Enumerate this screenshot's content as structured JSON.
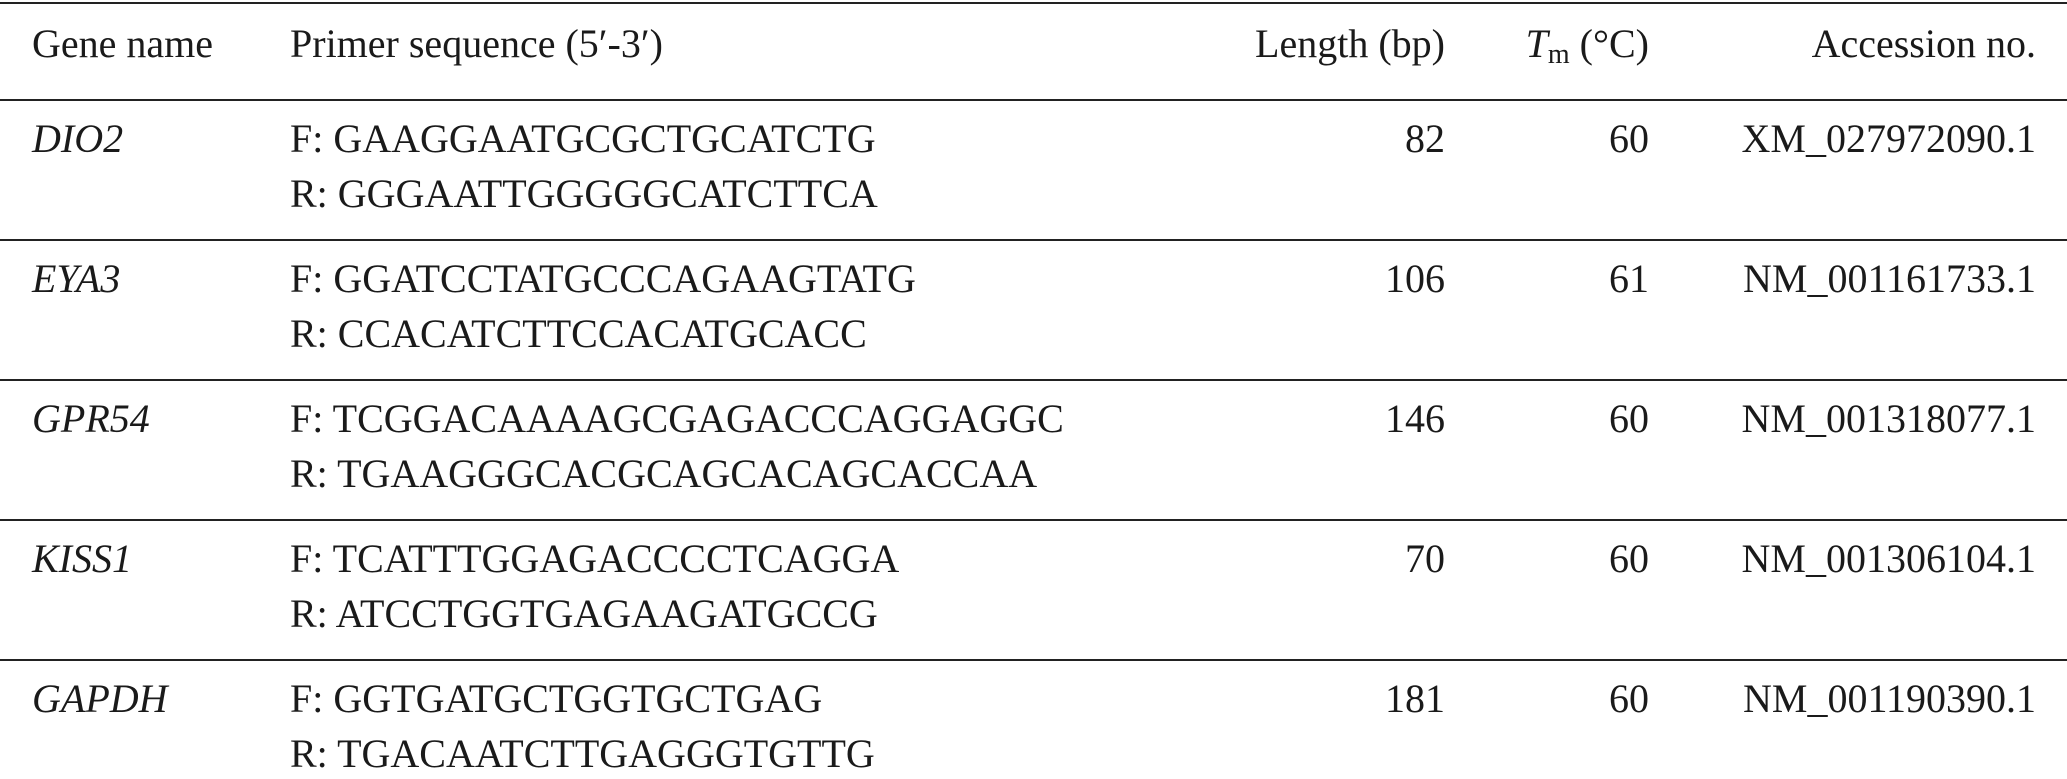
{
  "table": {
    "header": [
      "Gene name",
      "Primer sequence (5′-3′)",
      "Length (bp)",
      {
        "symbol": "T",
        "subscript": "m",
        "unit": "(°C)"
      },
      "Accession no."
    ],
    "rows": [
      [
        "DIO2",
        [
          "F: GAAGGAATGCGCTGCATCTG",
          "R: GGGAATTGGGGGCATCTTCA"
        ],
        82,
        60,
        "XM_027972090.1"
      ],
      [
        "EYA3",
        [
          "F: GGATCCTATGCCCAGAAGTATG",
          "R: CCACATCTTCCACATGCACC"
        ],
        106,
        61,
        "NM_001161733.1"
      ],
      [
        "GPR54",
        [
          "F: TCGGACAAAAGCGAGACCCAGGAGGC",
          "R: TGAAGGGCACGCAGCACAGCACCAA"
        ],
        146,
        60,
        "NM_001318077.1"
      ],
      [
        "KISS1",
        [
          "F: TCATTTGGAGACCCCTCAGGA",
          "R: ATCCTGGTGAGAAGATGCCG"
        ],
        70,
        60,
        "NM_001306104.1"
      ],
      [
        "GAPDH",
        [
          "F: GGTGATGCTGGTGCTGAG",
          "R: TGACAATCTTGAGGGTGTTG"
        ],
        181,
        60,
        "NM_001190390.1"
      ]
    ]
  }
}
